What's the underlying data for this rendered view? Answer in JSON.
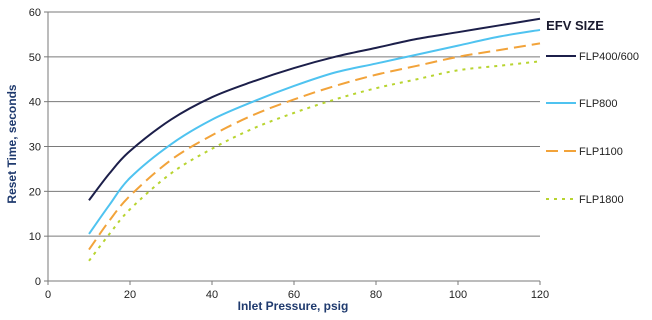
{
  "chart_data": {
    "type": "line",
    "title": "",
    "xlabel": "Inlet Pressure, psig",
    "ylabel": "Reset Time, seconds",
    "xlim": [
      0,
      120
    ],
    "ylim": [
      0,
      60
    ],
    "x_ticks": [
      "0",
      "20",
      "40",
      "60",
      "80",
      "100",
      "120"
    ],
    "y_ticks": [
      "0",
      "10",
      "20",
      "30",
      "40",
      "50",
      "60"
    ],
    "grid": "horizontal",
    "legend_title": "EFV SIZE",
    "legend_position": "right",
    "x": [
      10,
      15,
      20,
      30,
      40,
      50,
      60,
      70,
      80,
      90,
      100,
      110,
      120
    ],
    "series": [
      {
        "name": "FLP400/600",
        "color": "#1c1f4a",
        "dash": "solid",
        "values": [
          18,
          24,
          29,
          36,
          41,
          44.5,
          47.5,
          50,
          52,
          54,
          55.5,
          57,
          58.5
        ]
      },
      {
        "name": "FLP800",
        "color": "#4fc3f0",
        "dash": "solid",
        "values": [
          10.5,
          17,
          23,
          30.5,
          36,
          40,
          43.5,
          46.5,
          48.5,
          50.5,
          52.5,
          54.5,
          56
        ]
      },
      {
        "name": "FLP1100",
        "color": "#f2a33a",
        "dash": "dashed",
        "values": [
          7,
          13.5,
          19,
          27,
          32.5,
          37,
          40.5,
          43.5,
          46,
          48,
          50,
          51.5,
          53
        ]
      },
      {
        "name": "FLP1800",
        "color": "#b8d430",
        "dash": "dotted",
        "values": [
          4.5,
          10.5,
          16,
          24,
          29.5,
          34,
          37.5,
          40.5,
          43,
          45,
          47,
          48,
          49
        ]
      }
    ]
  }
}
